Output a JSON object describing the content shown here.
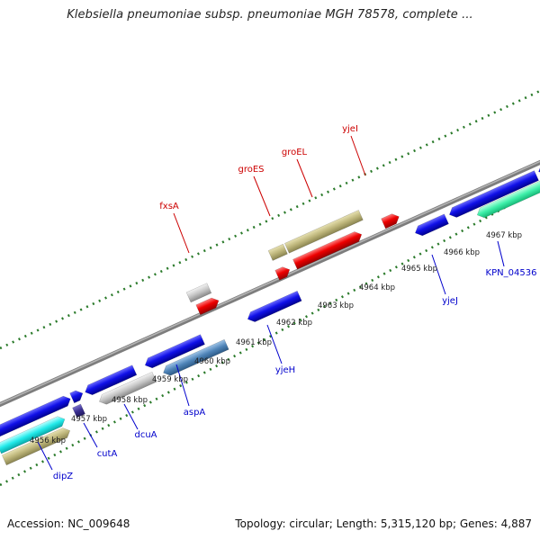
{
  "title": "Klebsiella pneumoniae subsp. pneumoniae MGH 78578, complete ...",
  "footer": {
    "accession": "Accession: NC_009648",
    "summary": "Topology: circular; Length: 5,315,120 bp; Genes: 4,887"
  },
  "colors": {
    "backbone": "#808080",
    "top_ticks": "#2a7a2a",
    "bottom_ticks": "#2a7a2a",
    "red_label": "#cc0000",
    "blue_label": "#0000cc",
    "gene_blue": "#0000dd",
    "gene_red": "#ee0000",
    "gene_gray": "#c4c4c4",
    "gene_olive": "#bdb57a",
    "gene_steel": "#4f84b8",
    "gene_cyan": "#22eaea",
    "gene_mint": "#3ff0aa",
    "gene_navy": "#3a2f90"
  },
  "kbp_ticks": [
    "4956 kbp",
    "4957 kbp",
    "4958 kbp",
    "4959 kbp",
    "4960 kbp",
    "4961 kbp",
    "4962 kbp",
    "4963 kbp",
    "4964 kbp",
    "4965 kbp",
    "4966 kbp",
    "4967 kbp"
  ],
  "top_genes": [
    "fxsA",
    "groES",
    "groEL",
    "yjeI"
  ],
  "bottom_genes": [
    "dipZ",
    "cutA",
    "dcuA",
    "aspA",
    "yjeH",
    "yjeJ",
    "KPN_04536"
  ]
}
